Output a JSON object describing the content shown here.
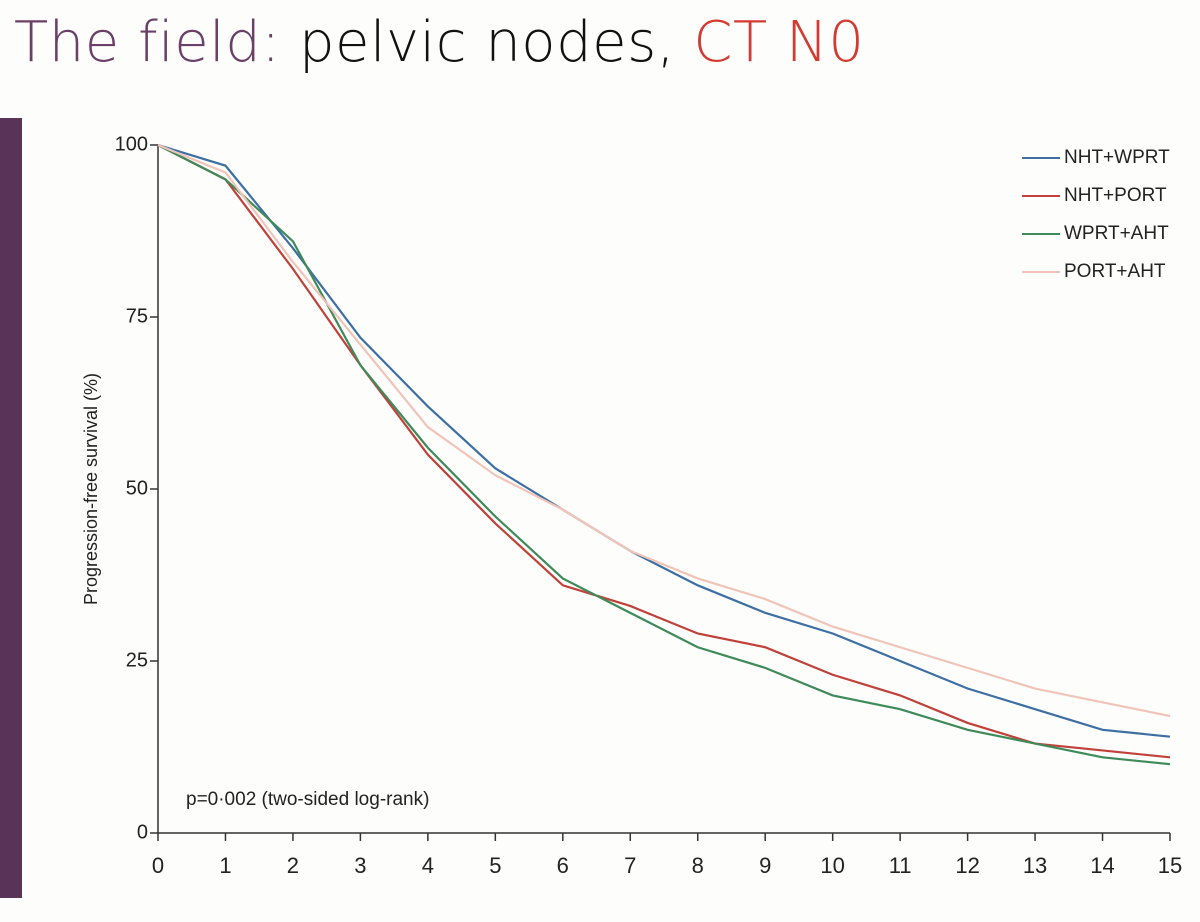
{
  "slide_title": [
    "The field:",
    "pelvic nodes,",
    "CT N0"
  ],
  "chart_data": {
    "type": "line",
    "y_label": "Progression-free survival (%)",
    "annotation": "p=0·002 (two-sided log-rank)",
    "x": [
      0,
      1,
      2,
      3,
      4,
      5,
      6,
      7,
      8,
      9,
      10,
      11,
      12,
      13,
      14,
      15
    ],
    "series": [
      {
        "name": "NHT+WPRT",
        "color": "#3d6fa3",
        "values": [
          100,
          97,
          85,
          72,
          62,
          53,
          47,
          41,
          36,
          32,
          29,
          25,
          21,
          18,
          15,
          14
        ]
      },
      {
        "name": "NHT+PORT",
        "color": "#c0403a",
        "values": [
          100,
          95,
          82,
          68,
          55,
          45,
          36,
          33,
          29,
          27,
          23,
          20,
          16,
          13,
          12,
          11
        ]
      },
      {
        "name": "WPRT+AHT",
        "color": "#3f8a5a",
        "values": [
          100,
          95,
          86,
          68,
          56,
          46,
          37,
          32,
          27,
          24,
          20,
          18,
          15,
          13,
          11,
          10
        ]
      },
      {
        "name": "PORT+AHT",
        "color": "#f0c4b8",
        "values": [
          100,
          96,
          83,
          71,
          59,
          52,
          47,
          41,
          37,
          34,
          30,
          27,
          24,
          21,
          19,
          17
        ]
      }
    ],
    "xlim": [
      0,
      15
    ],
    "xticks": [
      0,
      1,
      2,
      3,
      4,
      5,
      6,
      7,
      8,
      9,
      10,
      11,
      12,
      13,
      14,
      15
    ],
    "ylim": [
      0,
      100
    ],
    "yticks": [
      0,
      25,
      50,
      75,
      100
    ],
    "legend": "top-right"
  }
}
